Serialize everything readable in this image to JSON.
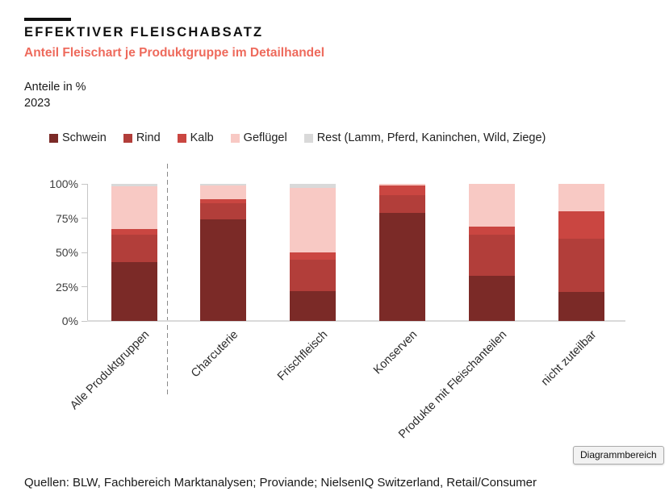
{
  "header": {
    "title": "EFFEKTIVER FLEISCHABSATZ",
    "subtitle": "Anteil Fleischart je Produktgruppe im Detailhandel",
    "unit_line1": "Anteile in %",
    "unit_line2": "2023"
  },
  "tooltip_label": "Diagrammbereich",
  "source": "Quellen: BLW, Fachbereich Marktanalysen; Proviande; NielsenIQ Switzerland, Retail/Consumer",
  "colors": {
    "schwein": "#7B2A27",
    "rind": "#B23E3A",
    "kalb": "#CA4641",
    "gefluegel": "#F8C9C4",
    "rest": "#D9D9D9",
    "subtitle_red": "#ee6a5c"
  },
  "chart_data": {
    "type": "bar",
    "stacked": true,
    "title": "EFFEKTIVER FLEISCHABSATZ",
    "subtitle": "Anteil Fleischart je Produktgruppe im Detailhandel",
    "ylabel": "Anteile in %",
    "year": "2023",
    "ylim": [
      0,
      100
    ],
    "yticks": [
      0,
      25,
      50,
      75,
      100
    ],
    "ytick_labels": [
      "0%",
      "25%",
      "50%",
      "75%",
      "100%"
    ],
    "grid": false,
    "legend_position": "top",
    "separator_after_first_category": true,
    "categories": [
      "Alle Produktgruppen",
      "Charcuterie",
      "Frischfleisch",
      "Konserven",
      "Produkte mit Fleischanteilen",
      "nicht zuteilbar"
    ],
    "series": [
      {
        "name": "Schwein",
        "color": "#7B2A27",
        "values": [
          43,
          74,
          22,
          79,
          33,
          21
        ]
      },
      {
        "name": "Rind",
        "color": "#B23E3A",
        "values": [
          20,
          12,
          23,
          13,
          30,
          39
        ]
      },
      {
        "name": "Kalb",
        "color": "#CA4641",
        "values": [
          4,
          3,
          5,
          7,
          6,
          20
        ]
      },
      {
        "name": "Geflügel",
        "color": "#F8C9C4",
        "values": [
          31,
          10,
          47,
          1,
          31,
          20
        ]
      },
      {
        "name": "Rest (Lamm, Pferd, Kaninchen, Wild, Ziege)",
        "color": "#D9D9D9",
        "values": [
          2,
          1,
          3,
          0,
          0,
          0
        ]
      }
    ]
  }
}
